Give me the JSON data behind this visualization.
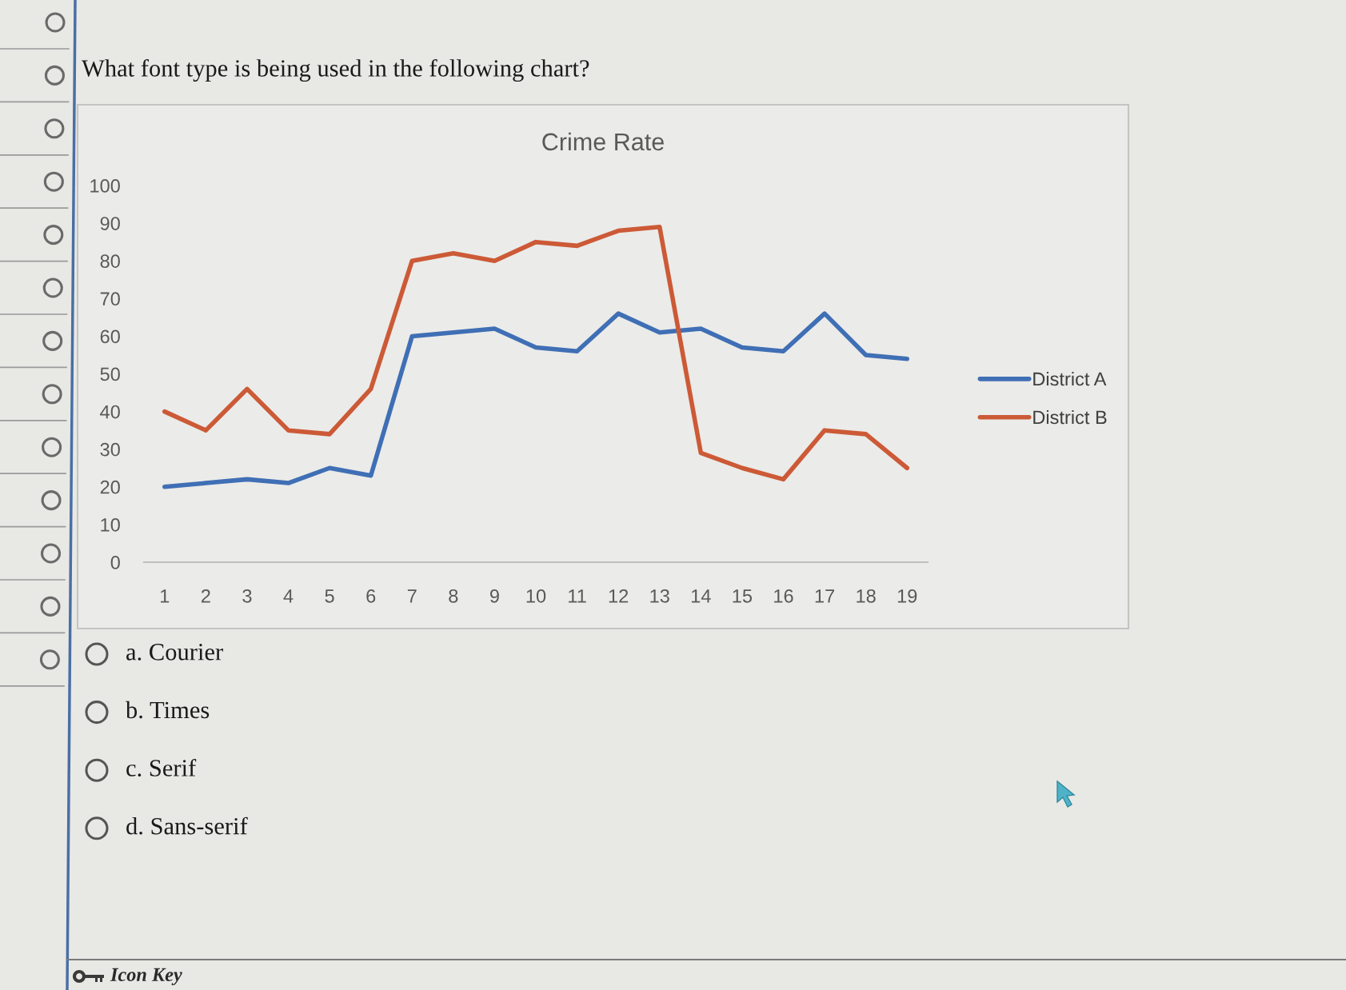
{
  "chart_data": {
    "type": "line",
    "title": "Crime Rate",
    "categories": [
      "1",
      "2",
      "3",
      "4",
      "5",
      "6",
      "7",
      "8",
      "9",
      "10",
      "11",
      "12",
      "13",
      "14",
      "15",
      "16",
      "17",
      "18",
      "19"
    ],
    "series": [
      {
        "name": "District A",
        "color": "#3f6fb5",
        "values": [
          20,
          21,
          22,
          21,
          25,
          23,
          60,
          61,
          62,
          57,
          56,
          66,
          61,
          62,
          57,
          56,
          66,
          55,
          54
        ]
      },
      {
        "name": "District B",
        "color": "#cc5a36",
        "values": [
          40,
          35,
          46,
          35,
          34,
          46,
          80,
          82,
          80,
          85,
          84,
          88,
          89,
          29,
          25,
          22,
          35,
          34,
          25
        ]
      }
    ],
    "ylim": [
      0,
      100
    ],
    "yticks": [
      0,
      10,
      20,
      30,
      40,
      50,
      60,
      70,
      80,
      90,
      100
    ],
    "grid": false,
    "legend": "right",
    "line_style": "solid",
    "annotations": [
      "What font type is being used in the following chart?",
      "a. Courier",
      "b. Times",
      "c. Serif",
      "d. Sans-serif",
      "Icon Key"
    ]
  }
}
